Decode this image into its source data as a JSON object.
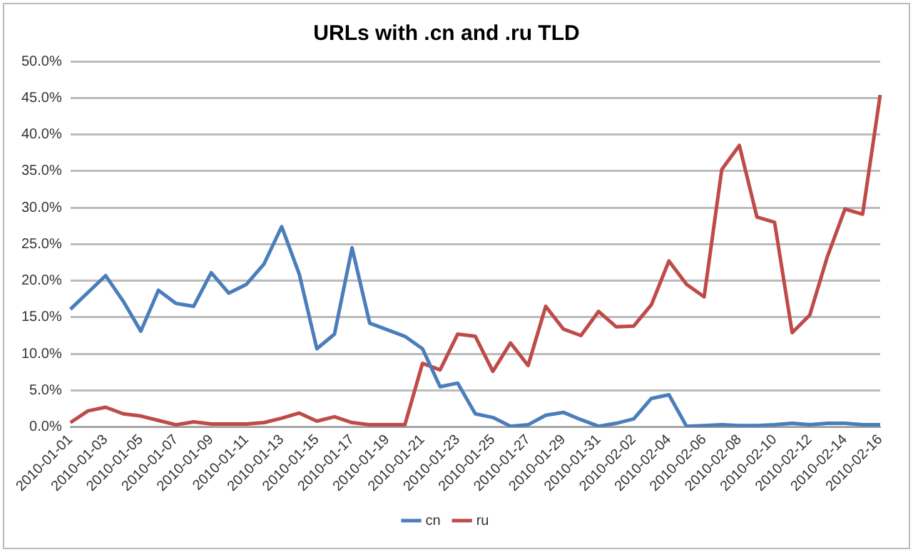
{
  "chart_data": {
    "type": "line",
    "title": "URLs with .cn and .ru TLD",
    "categories": [
      "2010-01-01",
      null,
      "2010-01-03",
      null,
      "2010-01-05",
      null,
      "2010-01-07",
      null,
      "2010-01-09",
      null,
      "2010-01-11",
      null,
      "2010-01-13",
      null,
      "2010-01-15",
      null,
      "2010-01-17",
      null,
      "2010-01-19",
      null,
      "2010-01-21",
      null,
      "2010-01-23",
      null,
      "2010-01-25",
      null,
      "2010-01-27",
      null,
      "2010-01-29",
      null,
      "2010-01-31",
      null,
      "2010-02-02",
      null,
      "2010-02-04",
      null,
      "2010-02-06",
      null,
      "2010-02-08",
      null,
      "2010-02-10",
      null,
      "2010-02-12",
      null,
      "2010-02-14",
      null,
      "2010-02-16"
    ],
    "series": [
      {
        "name": "cn",
        "color": "#4a7ebb",
        "values": [
          16.1,
          18.4,
          20.7,
          17.2,
          13.1,
          18.7,
          16.9,
          16.5,
          21.1,
          18.3,
          19.5,
          22.3,
          27.4,
          20.9,
          10.7,
          12.7,
          24.5,
          14.2,
          13.3,
          12.4,
          10.7,
          5.5,
          6.0,
          1.8,
          1.3,
          0.1,
          0.3,
          1.6,
          2.0,
          1.0,
          0.1,
          0.5,
          1.1,
          3.9,
          4.4,
          0.1,
          0.2,
          0.3,
          0.2,
          0.2,
          0.3,
          0.5,
          0.3,
          0.5,
          0.5,
          0.3,
          0.3
        ]
      },
      {
        "name": "ru",
        "color": "#be4b48",
        "values": [
          0.6,
          2.2,
          2.7,
          1.8,
          1.5,
          0.9,
          0.3,
          0.7,
          0.4,
          0.4,
          0.4,
          0.6,
          1.2,
          1.9,
          0.8,
          1.4,
          0.6,
          0.3,
          0.3,
          0.3,
          8.7,
          7.8,
          12.7,
          12.4,
          7.6,
          11.5,
          8.4,
          16.5,
          13.4,
          12.5,
          15.8,
          13.7,
          13.8,
          16.7,
          22.7,
          19.5,
          17.8,
          35.2,
          38.5,
          28.7,
          28.0,
          12.9,
          15.3,
          23.3,
          29.8,
          29.1,
          45.4
        ]
      }
    ],
    "ylim": [
      0,
      50
    ],
    "yticks": [
      {
        "value": 0,
        "label": "0.0%"
      },
      {
        "value": 5,
        "label": "5.0%"
      },
      {
        "value": 10,
        "label": "10.0%"
      },
      {
        "value": 15,
        "label": "15.0%"
      },
      {
        "value": 20,
        "label": "20.0%"
      },
      {
        "value": 25,
        "label": "25.0%"
      },
      {
        "value": 30,
        "label": "30.0%"
      },
      {
        "value": 35,
        "label": "35.0%"
      },
      {
        "value": 40,
        "label": "40.0%"
      },
      {
        "value": 45,
        "label": "45.0%"
      },
      {
        "value": 50,
        "label": "50.0%"
      }
    ],
    "grid": "y",
    "legend": "bottom",
    "marker": "none",
    "line_style": "solid"
  }
}
